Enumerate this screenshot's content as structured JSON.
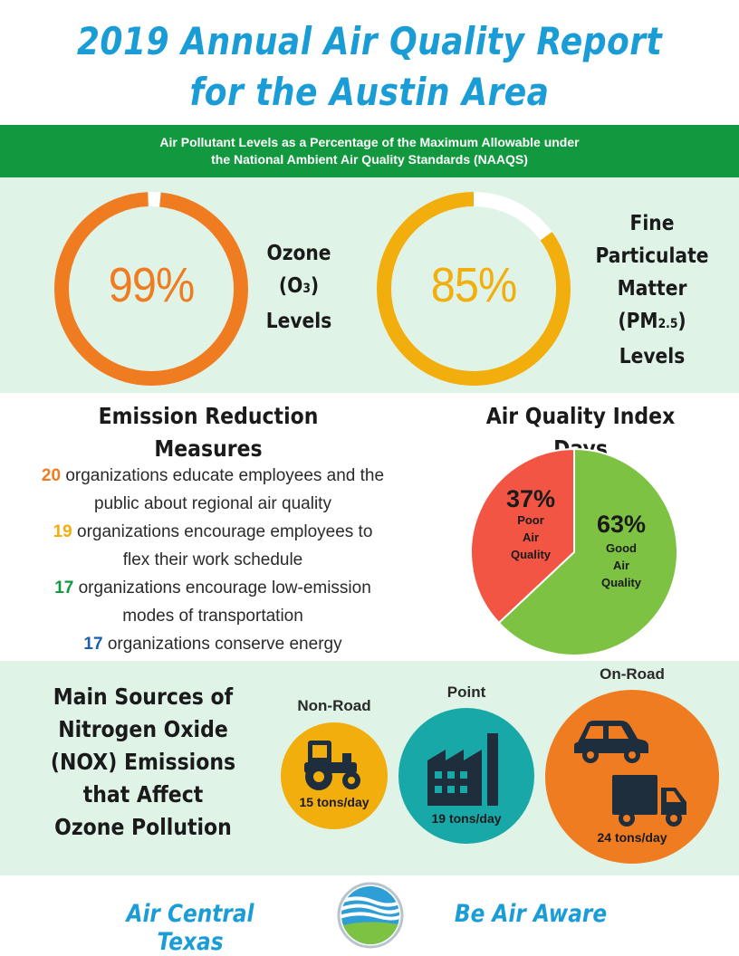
{
  "title": {
    "line1": "2019 Annual Air Quality Report",
    "line2": "for the Austin Area"
  },
  "banner": {
    "line1": "Air Pollutant Levels as a Percentage of the Maximum Allowable under",
    "line2": "the National Ambient Air Quality Standards (NAAQS)"
  },
  "pollutants": [
    {
      "percent_label": "99%",
      "value": 99,
      "name_lines": [
        "Ozone",
        "(O",
        "3",
        ")",
        "Levels"
      ],
      "color": "#f07c22"
    },
    {
      "percent_label": "85%",
      "value": 85,
      "name_lines": [
        "Fine",
        "Particulate",
        "Matter",
        "(PM",
        "2.5",
        ")",
        "Levels"
      ],
      "color": "#f2ae0d"
    }
  ],
  "emission": {
    "heading_line1": "Emission Reduction",
    "heading_line2": "Measures",
    "measures": [
      {
        "count": "20",
        "color": "#f07c22",
        "text_a": " organizations educate employees and the",
        "text_b": "public about regional air quality"
      },
      {
        "count": "19",
        "color": "#f2ae0d",
        "text_a": " organizations encourage employees to",
        "text_b": "flex their work schedule"
      },
      {
        "count": "17",
        "color": "#12993f",
        "text_a": " organizations encourage low-emission",
        "text_b": "modes of transportation"
      },
      {
        "count": "17",
        "color": "#1a5fad",
        "text_a": " organizations conserve energy",
        "text_b": ""
      }
    ]
  },
  "aqi": {
    "heading": "Air Quality Index Days",
    "chart_data": {
      "type": "pie",
      "slices": [
        {
          "label_lines": [
            "Poor",
            "Air",
            "Quality"
          ],
          "percent_label": "37%",
          "value": 37,
          "color": "#f25544"
        },
        {
          "label_lines": [
            "Good",
            "Air",
            "Quality"
          ],
          "percent_label": "63%",
          "value": 63,
          "color": "#7dc242"
        }
      ]
    }
  },
  "sources": {
    "heading_lines": [
      "Main Sources of",
      "Nitrogen Oxide",
      "(NOX) Emissions",
      "that Affect",
      "Ozone Pollution"
    ],
    "items": [
      {
        "name": "Non-Road",
        "value_label": "15 tons/day",
        "tons": 15,
        "color": "#f2ae0d",
        "icon": "tractor-icon"
      },
      {
        "name": "Point",
        "value_label": "19 tons/day",
        "tons": 19,
        "color": "#19a8a8",
        "icon": "factory-icon"
      },
      {
        "name": "On-Road",
        "value_label": "24 tons/day",
        "tons": 24,
        "color": "#f07c22",
        "icon": "car-truck-icon"
      }
    ]
  },
  "footer": {
    "left": "Air Central Texas",
    "right": "Be Air Aware",
    "logo": "air-central-texas-logo"
  }
}
